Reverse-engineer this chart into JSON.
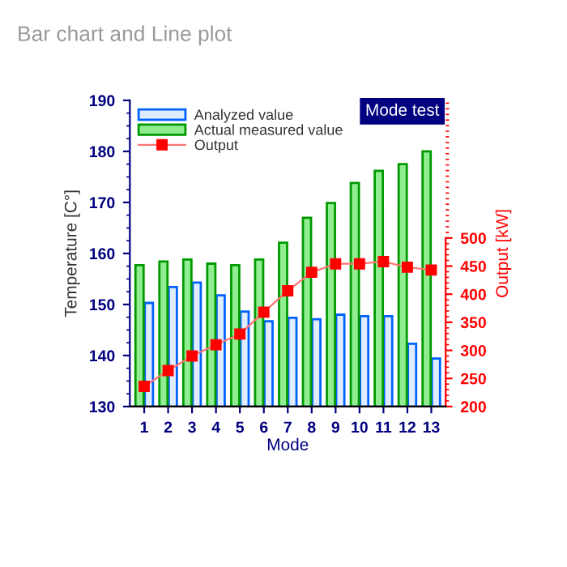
{
  "chart_data": {
    "type": "bar",
    "title": "Bar chart and Line plot",
    "xlabel": "Mode",
    "ylabel": "Temperature [C°]",
    "y2label": "Output [kW]",
    "annotations": [
      "Mode test"
    ],
    "categories": [
      "1",
      "2",
      "3",
      "4",
      "5",
      "6",
      "7",
      "8",
      "9",
      "10",
      "11",
      "12",
      "13"
    ],
    "series": [
      {
        "name": "Analyzed value",
        "color": "#e0ecff",
        "values": [
          150.3,
          153.4,
          154.3,
          151.8,
          148.6,
          146.7,
          147.4,
          147.1,
          148.0,
          147.7,
          147.7,
          142.3,
          139.4
        ]
      },
      {
        "name": "Actual measured value",
        "color": "#90ee90",
        "values": [
          157.7,
          158.4,
          158.8,
          158.0,
          157.7,
          158.8,
          162.1,
          167.0,
          169.9,
          173.8,
          176.2,
          177.5,
          180.0
        ]
      },
      {
        "name": "Output",
        "type": "line",
        "axis": "y2",
        "color": "#ff0000",
        "marker": "square",
        "values": [
          236,
          264,
          290,
          310,
          329,
          368,
          406,
          439,
          454,
          454,
          458,
          448,
          443
        ]
      }
    ],
    "ylim": [
      130,
      190
    ],
    "yticks": [
      130,
      140,
      150,
      160,
      170,
      180,
      190
    ],
    "y2lim": [
      200,
      745
    ],
    "y2ticks": [
      200,
      250,
      300,
      350,
      400,
      450,
      500
    ],
    "grid": false,
    "legend": "top left"
  }
}
